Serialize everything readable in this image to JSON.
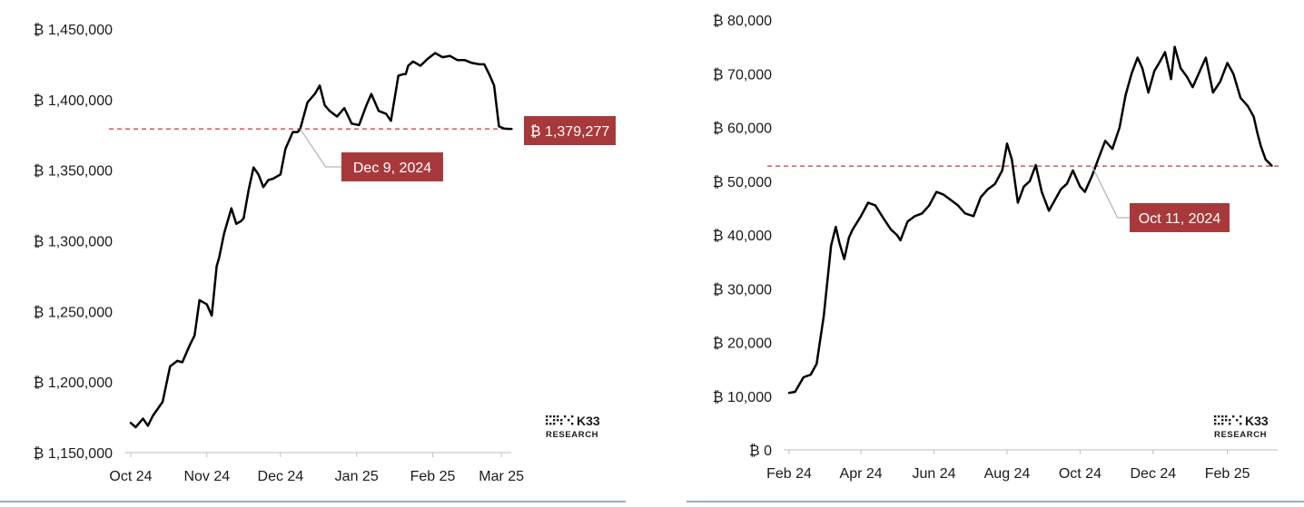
{
  "colors": {
    "line": "#000000",
    "reference": "#c0393b",
    "callout_bg": "#a8393b",
    "callout_text": "#ffffff",
    "axis": "#bfbfbf",
    "footer_rule": "#5b7f95"
  },
  "branding": {
    "logo_top": "K33",
    "logo_bottom": "RESEARCH",
    "logo_icon": "k33-dot-matrix-icon"
  },
  "chart_data": [
    {
      "type": "line",
      "title": "",
      "xlabel": "",
      "ylabel": "",
      "x_ticks": [
        "Oct 24",
        "Nov 24",
        "Dec 24",
        "Jan 25",
        "Feb 25",
        "Mar 25"
      ],
      "y_ticks": [
        "₿ 1,450,000",
        "₿ 1,400,000",
        "₿ 1,350,000",
        "₿ 1,300,000",
        "₿ 1,250,000",
        "₿ 1,200,000",
        "₿ 1,150,000"
      ],
      "y_tick_values": [
        1450000,
        1400000,
        1350000,
        1300000,
        1250000,
        1200000,
        1150000
      ],
      "xlim": [
        "2024-10-01",
        "2025-03-05"
      ],
      "ylim": [
        1150000,
        1450000
      ],
      "reference_line": {
        "value": 1379277,
        "label": "₿ 1,379,277"
      },
      "annotation": {
        "label": "Dec 9, 2024",
        "date": "2024-12-09"
      },
      "grid": false,
      "series": [
        {
          "x": [
            "2024-10-01",
            "2024-10-03",
            "2024-10-06",
            "2024-10-08",
            "2024-10-10",
            "2024-10-14",
            "2024-10-17",
            "2024-10-20",
            "2024-10-22",
            "2024-10-25",
            "2024-10-27",
            "2024-10-29",
            "2024-11-01",
            "2024-11-03",
            "2024-11-05",
            "2024-11-06",
            "2024-11-08",
            "2024-11-11",
            "2024-11-13",
            "2024-11-15",
            "2024-11-16",
            "2024-11-18",
            "2024-11-20",
            "2024-11-22",
            "2024-11-24",
            "2024-11-26",
            "2024-11-28",
            "2024-12-01",
            "2024-12-03",
            "2024-12-06",
            "2024-12-08",
            "2024-12-09",
            "2024-12-12",
            "2024-12-15",
            "2024-12-17",
            "2024-12-19",
            "2024-12-21",
            "2024-12-24",
            "2024-12-27",
            "2024-12-30",
            "2025-01-02",
            "2025-01-05",
            "2025-01-07",
            "2025-01-10",
            "2025-01-13",
            "2025-01-15",
            "2025-01-18",
            "2025-01-20",
            "2025-01-21",
            "2025-01-22",
            "2025-01-24",
            "2025-01-27",
            "2025-01-30",
            "2025-02-02",
            "2025-02-05",
            "2025-02-08",
            "2025-02-11",
            "2025-02-14",
            "2025-02-17",
            "2025-02-20",
            "2025-02-22",
            "2025-02-24",
            "2025-02-26",
            "2025-02-28",
            "2025-03-02",
            "2025-03-04",
            "2025-03-05"
          ],
          "y": [
            1171000,
            1168000,
            1174000,
            1169000,
            1176000,
            1186000,
            1211000,
            1215000,
            1214000,
            1226000,
            1233000,
            1258000,
            1255000,
            1247000,
            1282000,
            1288000,
            1305000,
            1323000,
            1312000,
            1314000,
            1316000,
            1336000,
            1352000,
            1347000,
            1338000,
            1343000,
            1344000,
            1347000,
            1365000,
            1377000,
            1377000,
            1379000,
            1398000,
            1404000,
            1410000,
            1396000,
            1392000,
            1388000,
            1394000,
            1383000,
            1382000,
            1396000,
            1404000,
            1392000,
            1390000,
            1385000,
            1417000,
            1418000,
            1418000,
            1424000,
            1427000,
            1424000,
            1429000,
            1433000,
            1430000,
            1431000,
            1428000,
            1428000,
            1426000,
            1425000,
            1425000,
            1418000,
            1410000,
            1381000,
            1379500,
            1379300,
            1379277
          ]
        }
      ]
    },
    {
      "type": "line",
      "title": "",
      "xlabel": "",
      "ylabel": "",
      "x_ticks": [
        "Feb 24",
        "Apr 24",
        "Jun 24",
        "Aug 24",
        "Oct 24",
        "Dec 24",
        "Feb 25"
      ],
      "y_ticks": [
        "₿ 80,000",
        "₿ 70,000",
        "₿ 60,000",
        "₿ 50,000",
        "₿ 40,000",
        "₿ 30,000",
        "₿ 20,000",
        "₿ 10,000",
        "₿ 0"
      ],
      "y_tick_values": [
        80000,
        70000,
        60000,
        50000,
        40000,
        30000,
        20000,
        10000,
        0
      ],
      "xlim": [
        "2024-02-01",
        "2025-03-15"
      ],
      "ylim": [
        0,
        80000
      ],
      "reference_line": {
        "value": 52800
      },
      "annotation": {
        "label": "Oct 11, 2024",
        "date": "2024-10-11"
      },
      "grid": false,
      "series": [
        {
          "x": [
            "2024-02-01",
            "2024-02-06",
            "2024-02-13",
            "2024-02-19",
            "2024-02-24",
            "2024-03-01",
            "2024-03-07",
            "2024-03-11",
            "2024-03-14",
            "2024-03-18",
            "2024-03-22",
            "2024-03-25",
            "2024-04-01",
            "2024-04-07",
            "2024-04-13",
            "2024-04-20",
            "2024-04-26",
            "2024-05-01",
            "2024-05-04",
            "2024-05-10",
            "2024-05-16",
            "2024-05-22",
            "2024-05-28",
            "2024-06-03",
            "2024-06-09",
            "2024-06-15",
            "2024-06-21",
            "2024-06-27",
            "2024-07-04",
            "2024-07-10",
            "2024-07-16",
            "2024-07-22",
            "2024-07-28",
            "2024-08-01",
            "2024-08-05",
            "2024-08-10",
            "2024-08-15",
            "2024-08-20",
            "2024-08-25",
            "2024-08-30",
            "2024-09-05",
            "2024-09-10",
            "2024-09-15",
            "2024-09-20",
            "2024-09-25",
            "2024-10-01",
            "2024-10-05",
            "2024-10-11",
            "2024-10-16",
            "2024-10-22",
            "2024-10-28",
            "2024-11-03",
            "2024-11-08",
            "2024-11-13",
            "2024-11-18",
            "2024-11-22",
            "2024-11-27",
            "2024-12-02",
            "2024-12-06",
            "2024-12-11",
            "2024-12-16",
            "2024-12-19",
            "2024-12-24",
            "2024-12-29",
            "2025-01-03",
            "2025-01-08",
            "2025-01-14",
            "2025-01-20",
            "2025-01-26",
            "2025-02-01",
            "2025-02-06",
            "2025-02-12",
            "2025-02-18",
            "2025-02-23",
            "2025-02-26",
            "2025-03-01",
            "2025-03-05",
            "2025-03-10"
          ],
          "y": [
            10600,
            10800,
            13500,
            14000,
            16000,
            25000,
            38000,
            41500,
            38500,
            35500,
            39500,
            41000,
            43500,
            46000,
            45500,
            43000,
            41000,
            40000,
            39000,
            42500,
            43500,
            44000,
            45500,
            48000,
            47500,
            46500,
            45500,
            44000,
            43500,
            47000,
            48500,
            49500,
            52000,
            57000,
            54000,
            46000,
            49000,
            50000,
            53000,
            48000,
            44500,
            46500,
            48500,
            49500,
            52000,
            49000,
            48000,
            51000,
            54000,
            57500,
            56000,
            60000,
            66000,
            70000,
            73000,
            71000,
            66500,
            70500,
            72000,
            74000,
            69000,
            75000,
            71000,
            69500,
            67500,
            70000,
            73000,
            66500,
            68500,
            72000,
            70000,
            65500,
            64000,
            62000,
            59000,
            56500,
            54000,
            52900
          ]
        }
      ]
    }
  ]
}
